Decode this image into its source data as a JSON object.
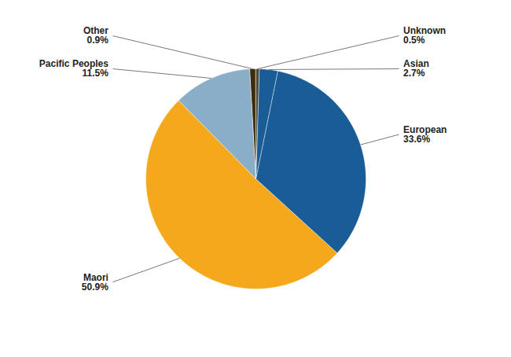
{
  "chart_data": {
    "type": "pie",
    "categories": [
      "Other",
      "Pacific Peoples",
      "Maori",
      "European",
      "Asian",
      "Unknown"
    ],
    "values": [
      0.9,
      11.5,
      50.9,
      33.6,
      2.7,
      0.5
    ],
    "value_labels": [
      "0.9%",
      "11.5%",
      "50.9%",
      "33.6%",
      "2.7%",
      "0.5%"
    ],
    "colors": [
      "#3d2b0a",
      "#8aaec8",
      "#f5a81c",
      "#1a5c96",
      "#1a5c96",
      "#4a4a3a"
    ],
    "data_labels": true
  }
}
